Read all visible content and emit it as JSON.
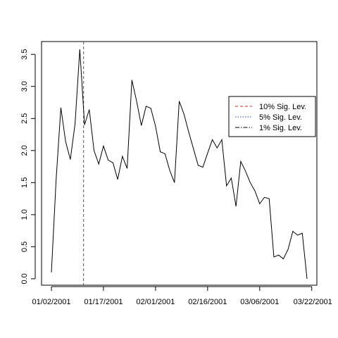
{
  "chart_data": {
    "type": "line",
    "title": "",
    "xlabel": "",
    "ylabel": "",
    "ylim": [
      -0.1,
      3.7
    ],
    "yticks": [
      0.0,
      0.5,
      1.0,
      1.5,
      2.0,
      2.5,
      3.0,
      3.5
    ],
    "ytick_labels": [
      "0.0",
      "0.5",
      "1.0",
      "1.5",
      "2.0",
      "2.5",
      "3.0",
      "3.5"
    ],
    "xticks": [
      {
        "index": 0,
        "label": "01/02/2001"
      },
      {
        "index": 11,
        "label": "01/17/2001"
      },
      {
        "index": 22,
        "label": "02/01/2001"
      },
      {
        "index": 33,
        "label": "02/16/2001"
      },
      {
        "index": 44,
        "label": "03/06/2001"
      },
      {
        "index": 55,
        "label": "03/22/2001"
      }
    ],
    "grid": false,
    "legend_position": "right",
    "series": [
      {
        "color": "#000000",
        "values": [
          0.1,
          1.55,
          2.67,
          2.14,
          1.86,
          2.42,
          3.58,
          2.4,
          2.64,
          2.0,
          1.79,
          2.07,
          1.85,
          1.81,
          1.55,
          1.91,
          1.72,
          3.1,
          2.77,
          2.39,
          2.69,
          2.66,
          2.38,
          1.98,
          1.95,
          1.69,
          1.5,
          2.77,
          2.57,
          2.29,
          2.03,
          1.77,
          1.74,
          1.96,
          2.17,
          2.04,
          2.17,
          1.45,
          1.57,
          1.13,
          1.83,
          1.68,
          1.5,
          1.37,
          1.17,
          1.27,
          1.25,
          0.34,
          0.37,
          0.31,
          0.46,
          0.74,
          0.68,
          0.71,
          0.0
        ]
      }
    ],
    "break_line": {
      "index": 6.8,
      "style": "dashed",
      "color": "#555555"
    },
    "legend": [
      {
        "label": "10% Sig. Lev.",
        "color": "#d62728",
        "dash": "dashed"
      },
      {
        "label": "5% Sig. Lev.",
        "color": "#1f3fff",
        "dash": "dotted"
      },
      {
        "label": "1% Sig. Lev.",
        "color": "#000000",
        "dash": "dashdot"
      }
    ]
  }
}
